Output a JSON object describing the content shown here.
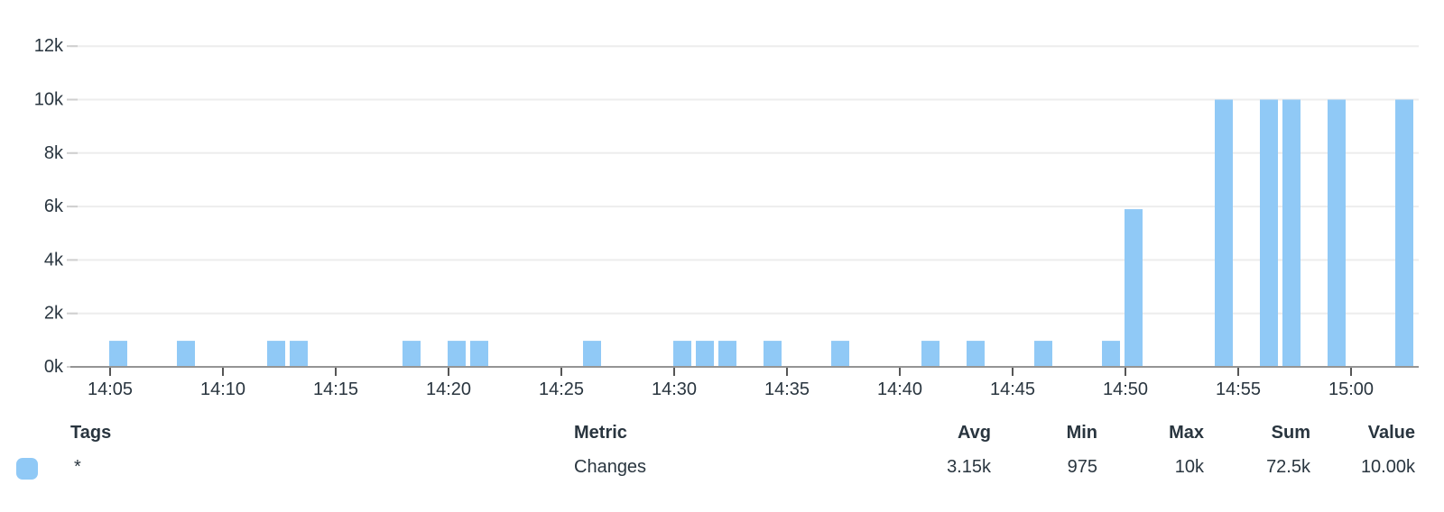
{
  "chart_data": {
    "type": "bar",
    "title": "",
    "series_name": "Changes",
    "bar_color": "#90c9f6",
    "x_axis": {
      "tick_labels": [
        "14:05",
        "14:10",
        "14:15",
        "14:20",
        "14:25",
        "14:30",
        "14:35",
        "14:40",
        "14:45",
        "14:50",
        "14:55",
        "15:00"
      ],
      "visible_range": [
        "14:03",
        "15:03"
      ],
      "grid": false
    },
    "y_axis": {
      "tick_labels": [
        "0k",
        "2k",
        "4k",
        "6k",
        "8k",
        "10k",
        "12k"
      ],
      "tick_values": [
        0,
        2000,
        4000,
        6000,
        8000,
        10000,
        12000
      ],
      "ylim": [
        0,
        12000
      ],
      "grid": true
    },
    "points": [
      {
        "time": "14:05",
        "value": 975
      },
      {
        "time": "14:08",
        "value": 975
      },
      {
        "time": "14:12",
        "value": 975
      },
      {
        "time": "14:13",
        "value": 975
      },
      {
        "time": "14:18",
        "value": 975
      },
      {
        "time": "14:20",
        "value": 975
      },
      {
        "time": "14:21",
        "value": 975
      },
      {
        "time": "14:26",
        "value": 975
      },
      {
        "time": "14:30",
        "value": 975
      },
      {
        "time": "14:31",
        "value": 975
      },
      {
        "time": "14:32",
        "value": 975
      },
      {
        "time": "14:34",
        "value": 975
      },
      {
        "time": "14:37",
        "value": 975
      },
      {
        "time": "14:41",
        "value": 975
      },
      {
        "time": "14:43",
        "value": 975
      },
      {
        "time": "14:46",
        "value": 975
      },
      {
        "time": "14:49",
        "value": 975
      },
      {
        "time": "14:50",
        "value": 5900
      },
      {
        "time": "14:54",
        "value": 10000
      },
      {
        "time": "14:56",
        "value": 10000
      },
      {
        "time": "14:57",
        "value": 10000
      },
      {
        "time": "14:59",
        "value": 10000
      },
      {
        "time": "15:02",
        "value": 10000
      }
    ],
    "legend_position": "bottom"
  },
  "legend": {
    "columns": [
      "Tags",
      "Metric",
      "Avg",
      "Min",
      "Max",
      "Sum",
      "Value"
    ],
    "rows": [
      {
        "swatch_color": "#90c9f6",
        "tags": "*",
        "metric": "Changes",
        "avg": "3.15k",
        "min": "975",
        "max": "10k",
        "sum": "72.5k",
        "value": "10.00k"
      }
    ]
  },
  "colors": {
    "bar": "#90c9f6",
    "text": "#29353f",
    "gridline": "#ededed",
    "axis_line": "#949494",
    "tick_mark": "#555555",
    "y_tick_dash": "#cfcfcf"
  }
}
